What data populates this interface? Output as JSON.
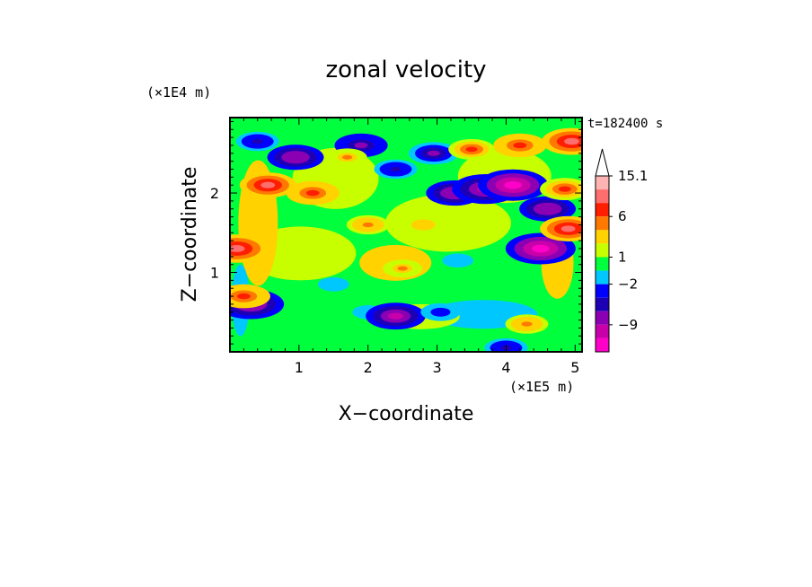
{
  "chart_data": {
    "type": "heatmap",
    "title": "zonal velocity",
    "xlabel": "X−coordinate",
    "ylabel": "Z−coordinate",
    "x_unit": "(×1E5 m)",
    "y_unit": "(×1E4 m)",
    "time_label": "t=182400 s",
    "xlim": [
      0,
      5.1
    ],
    "ylim": [
      0,
      2.95
    ],
    "x_ticks": [
      "1",
      "2",
      "3",
      "4",
      "5"
    ],
    "x_tick_values": [
      1,
      2,
      3,
      4,
      5
    ],
    "y_ticks": [
      "1",
      "2"
    ],
    "y_tick_values": [
      1,
      2
    ],
    "colorbar": {
      "levels": [
        -15.1,
        -12,
        -9,
        -6,
        -4,
        -2,
        -1,
        1,
        2,
        4,
        6,
        9,
        12,
        15.1
      ],
      "colors": [
        "#ff00c8",
        "#c800aa",
        "#8c00b4",
        "#1e00b4",
        "#0000ff",
        "#00c8ff",
        "#00ff3c",
        "#c8ff00",
        "#ffd200",
        "#ff7800",
        "#ff1e00",
        "#ff6e6e",
        "#ffb4b4"
      ],
      "tick_labels": [
        "15.1",
        "6",
        "1",
        "−2",
        "−9"
      ],
      "tick_values": [
        15.1,
        6,
        1,
        -2,
        -9
      ],
      "extend_max": true
    },
    "features": [
      {
        "x": 0.95,
        "z": 2.45,
        "u": -9
      },
      {
        "x": 1.9,
        "z": 2.6,
        "u": -8
      },
      {
        "x": 2.4,
        "z": 2.3,
        "u": -5
      },
      {
        "x": 2.95,
        "z": 2.5,
        "u": -7
      },
      {
        "x": 3.25,
        "z": 2.0,
        "u": -9
      },
      {
        "x": 3.7,
        "z": 2.05,
        "u": -12
      },
      {
        "x": 4.1,
        "z": 2.1,
        "u": -13
      },
      {
        "x": 4.6,
        "z": 1.8,
        "u": -9
      },
      {
        "x": 4.5,
        "z": 1.3,
        "u": -13
      },
      {
        "x": 0.3,
        "z": 0.6,
        "u": -12
      },
      {
        "x": 0.4,
        "z": 2.65,
        "u": -5
      },
      {
        "x": 0.55,
        "z": 2.1,
        "u": 9
      },
      {
        "x": 1.2,
        "z": 2.0,
        "u": 8
      },
      {
        "x": 0.1,
        "z": 1.3,
        "u": 11
      },
      {
        "x": 0.2,
        "z": 0.7,
        "u": 8
      },
      {
        "x": 2.0,
        "z": 1.6,
        "u": 5
      },
      {
        "x": 3.5,
        "z": 2.55,
        "u": 6
      },
      {
        "x": 4.2,
        "z": 2.6,
        "u": 8
      },
      {
        "x": 4.95,
        "z": 2.65,
        "u": 10
      },
      {
        "x": 4.85,
        "z": 2.05,
        "u": 7
      },
      {
        "x": 4.9,
        "z": 1.55,
        "u": 9
      },
      {
        "x": 2.5,
        "z": 1.05,
        "u": 4
      },
      {
        "x": 4.3,
        "z": 0.35,
        "u": 5
      },
      {
        "x": 1.5,
        "z": 0.85,
        "u": -1.5
      },
      {
        "x": 2.0,
        "z": 0.5,
        "u": -1.5
      },
      {
        "x": 3.3,
        "z": 1.15,
        "u": -1.5
      },
      {
        "x": 2.4,
        "z": 0.45,
        "u": -10
      },
      {
        "x": 3.05,
        "z": 0.5,
        "u": -4
      },
      {
        "x": 4.0,
        "z": 0.05,
        "u": -5
      },
      {
        "x": 1.7,
        "z": 2.45,
        "u": 4
      },
      {
        "x": 2.8,
        "z": 1.6,
        "u": 3
      }
    ]
  }
}
